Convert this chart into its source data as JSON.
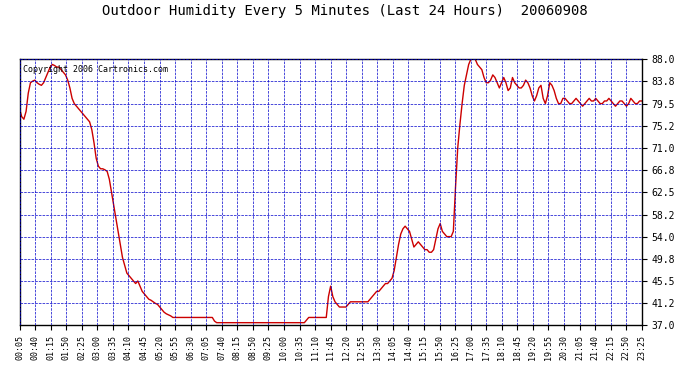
{
  "title": "Outdoor Humidity Every 5 Minutes (Last 24 Hours)  20060908",
  "copyright": "Copyright 2006 Cartronics.com",
  "line_color": "#cc0000",
  "bg_color": "#ffffff",
  "plot_bg_color": "#ffffff",
  "grid_color": "#0000cc",
  "grid_linestyle": "--",
  "ylim": [
    37.0,
    88.0
  ],
  "yticks": [
    37.0,
    41.2,
    45.5,
    49.8,
    54.0,
    58.2,
    62.5,
    66.8,
    71.0,
    75.2,
    79.5,
    83.8,
    88.0
  ],
  "x_labels": [
    "00:05",
    "00:40",
    "01:15",
    "01:50",
    "02:25",
    "03:00",
    "03:35",
    "04:10",
    "04:45",
    "05:20",
    "05:55",
    "06:30",
    "07:05",
    "07:40",
    "08:15",
    "08:50",
    "09:25",
    "10:00",
    "10:35",
    "11:10",
    "11:45",
    "12:20",
    "12:55",
    "13:30",
    "14:05",
    "14:40",
    "15:15",
    "15:50",
    "16:25",
    "17:00",
    "17:35",
    "18:10",
    "18:45",
    "19:20",
    "19:55",
    "20:30",
    "21:05",
    "21:40",
    "22:15",
    "22:50",
    "23:25"
  ],
  "humidity_values": [
    78.5,
    77.0,
    76.5,
    78.0,
    81.5,
    83.5,
    83.8,
    84.0,
    83.5,
    83.2,
    83.0,
    83.5,
    84.5,
    85.5,
    86.5,
    87.0,
    86.8,
    86.5,
    86.5,
    86.0,
    85.5,
    85.0,
    84.0,
    82.5,
    80.5,
    79.5,
    79.0,
    78.5,
    78.0,
    77.5,
    77.0,
    76.5,
    76.0,
    74.5,
    72.0,
    69.0,
    67.5,
    67.0,
    67.0,
    66.8,
    66.5,
    65.0,
    62.5,
    60.0,
    57.5,
    55.0,
    52.5,
    50.0,
    48.5,
    47.0,
    46.5,
    46.0,
    45.5,
    45.0,
    45.5,
    44.5,
    43.5,
    43.0,
    42.5,
    42.0,
    41.8,
    41.5,
    41.2,
    41.0,
    40.5,
    40.0,
    39.5,
    39.2,
    39.0,
    38.8,
    38.5,
    38.5,
    38.5,
    38.5,
    38.5,
    38.5,
    38.5,
    38.5,
    38.5,
    38.5,
    38.5,
    38.5,
    38.5,
    38.5,
    38.5,
    38.5,
    38.5,
    38.5,
    38.5,
    37.8,
    37.5,
    37.5,
    37.5,
    37.5,
    37.5,
    37.5,
    37.5,
    37.5,
    37.5,
    37.5,
    37.5,
    37.5,
    37.5,
    37.5,
    37.5,
    37.5,
    37.5,
    37.5,
    37.5,
    37.5,
    37.5,
    37.5,
    37.5,
    37.5,
    37.5,
    37.5,
    37.5,
    37.5,
    37.5,
    37.5,
    37.5,
    37.5,
    37.5,
    37.5,
    37.5,
    37.5,
    37.5,
    37.5,
    37.5,
    37.5,
    37.5,
    38.0,
    38.5,
    38.5,
    38.5,
    38.5,
    38.5,
    38.5,
    38.5,
    38.5,
    38.5,
    42.5,
    44.5,
    42.5,
    41.5,
    41.0,
    40.5,
    40.5,
    40.5,
    40.5,
    41.0,
    41.5,
    41.5,
    41.5,
    41.5,
    41.5,
    41.5,
    41.5,
    41.5,
    41.5,
    42.0,
    42.5,
    43.0,
    43.5,
    43.5,
    44.0,
    44.5,
    45.0,
    45.0,
    45.5,
    46.0,
    47.5,
    50.0,
    52.5,
    54.5,
    55.5,
    56.0,
    55.5,
    55.0,
    53.5,
    52.0,
    52.5,
    53.0,
    52.5,
    52.0,
    51.5,
    51.5,
    51.0,
    51.0,
    51.5,
    53.5,
    55.5,
    56.5,
    55.0,
    54.5,
    54.0,
    54.0,
    54.0,
    55.0,
    63.5,
    71.0,
    75.5,
    79.5,
    83.0,
    85.0,
    87.0,
    88.0,
    88.5,
    88.0,
    87.0,
    86.5,
    86.0,
    84.5,
    83.5,
    83.5,
    84.0,
    85.0,
    84.5,
    83.5,
    82.5,
    83.5,
    84.5,
    83.5,
    82.0,
    82.5,
    84.5,
    83.5,
    83.0,
    82.5,
    82.5,
    83.0,
    84.0,
    83.5,
    82.5,
    81.0,
    80.0,
    81.0,
    82.5,
    83.0,
    80.5,
    79.5,
    81.0,
    83.5,
    83.0,
    82.0,
    80.5,
    79.5,
    79.5,
    80.5,
    80.5,
    80.0,
    79.5,
    79.5,
    80.0,
    80.5,
    80.0,
    79.5,
    79.0,
    79.5,
    80.0,
    80.5,
    80.0,
    80.0,
    80.5,
    80.0,
    79.5,
    79.5,
    80.0,
    80.0,
    80.5,
    80.0,
    79.5,
    79.0,
    79.5,
    80.0,
    80.0,
    79.5,
    79.0,
    79.5,
    80.5,
    80.0,
    79.5,
    79.5,
    80.0,
    80.0
  ]
}
